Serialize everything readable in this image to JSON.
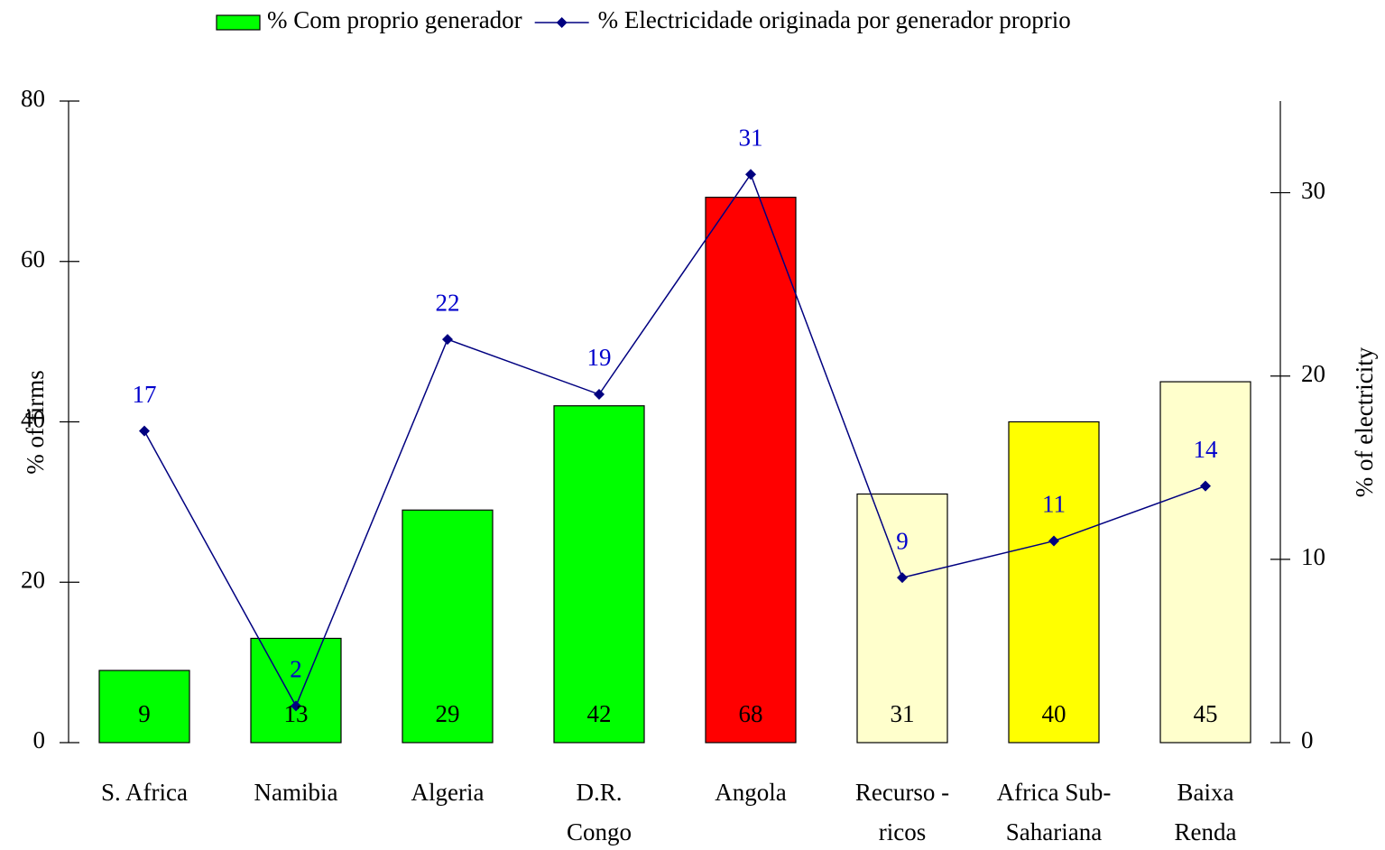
{
  "chart_data": {
    "type": "bar",
    "categories": [
      [
        "S. Africa"
      ],
      [
        "Namibia"
      ],
      [
        "Algeria"
      ],
      [
        "D.R.",
        "Congo"
      ],
      [
        "Angola"
      ],
      [
        "Recurso -",
        "ricos"
      ],
      [
        "Africa Sub-",
        "Sahariana"
      ],
      [
        "Baixa",
        "Renda"
      ]
    ],
    "series": [
      {
        "name": "% Com proprio generador",
        "type": "bar",
        "color": "#00ff00",
        "colors": [
          "#00ff00",
          "#00ff00",
          "#00ff00",
          "#00ff00",
          "#ff0000",
          "#ffffcc",
          "#ffff00",
          "#ffffcc"
        ],
        "values": [
          9,
          13,
          29,
          42,
          68,
          31,
          40,
          45
        ]
      },
      {
        "name": "% Electricidade originada por generador proprio",
        "type": "line",
        "axis": "y2",
        "color": "#000080",
        "label_color": "#0000cc",
        "values": [
          17,
          2,
          22,
          19,
          31,
          9,
          11,
          14
        ]
      }
    ],
    "ylabel": "% of firms",
    "y2label": "% of electricity",
    "ylim": [
      0,
      80
    ],
    "yticks": [
      0,
      20,
      40,
      60,
      80
    ],
    "y2lim": [
      0,
      35
    ],
    "y2ticks": [
      0,
      10,
      20,
      30
    ],
    "legend": "top"
  }
}
